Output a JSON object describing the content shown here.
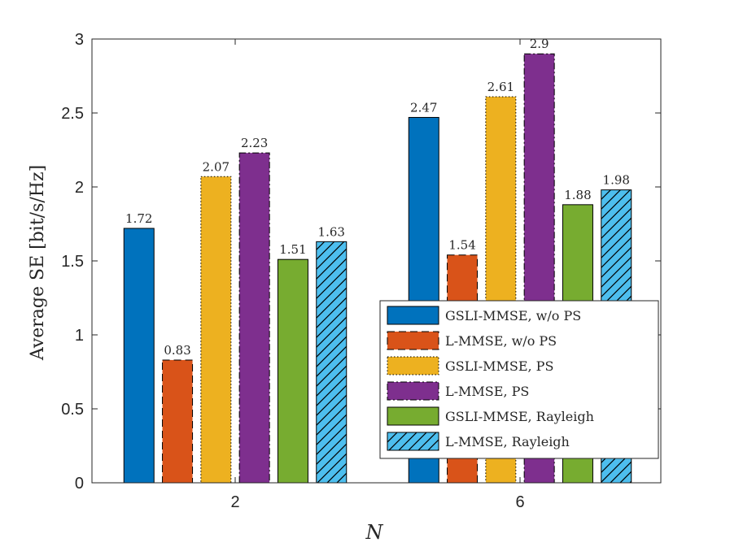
{
  "chart_data": {
    "type": "bar",
    "xlabel": "N",
    "ylabel": "Average SE [bit/s/Hz]",
    "categories": [
      "2",
      "6"
    ],
    "ylim": [
      0,
      3
    ],
    "yticks": [
      "0",
      "0.5",
      "1",
      "1.5",
      "2",
      "2.5",
      "3"
    ],
    "legend_position": "bottom-right",
    "series": [
      {
        "name": "GSLI-MMSE, w/o PS",
        "values": [
          1.72,
          2.47
        ],
        "labels": [
          "1.72",
          "2.47"
        ],
        "color": "#0072BD",
        "style": "solid"
      },
      {
        "name": "L-MMSE, w/o PS",
        "values": [
          0.83,
          1.54
        ],
        "labels": [
          "0.83",
          "1.54"
        ],
        "color": "#D95319",
        "style": "dashed"
      },
      {
        "name": "GSLI-MMSE, PS",
        "values": [
          2.07,
          2.61
        ],
        "labels": [
          "2.07",
          "2.61"
        ],
        "color": "#EDB120",
        "style": "dotted"
      },
      {
        "name": "L-MMSE, PS",
        "values": [
          2.23,
          2.9
        ],
        "labels": [
          "2.23",
          "2.9"
        ],
        "color": "#7E2F8E",
        "style": "dashdot"
      },
      {
        "name": "GSLI-MMSE, Rayleigh",
        "values": [
          1.51,
          1.88
        ],
        "labels": [
          "1.51",
          "1.88"
        ],
        "color": "#77AC30",
        "style": "solid"
      },
      {
        "name": "L-MMSE, Rayleigh",
        "values": [
          1.63,
          1.98
        ],
        "labels": [
          "1.63",
          "1.98"
        ],
        "color": "#4DBEEE",
        "style": "hatched"
      }
    ]
  }
}
